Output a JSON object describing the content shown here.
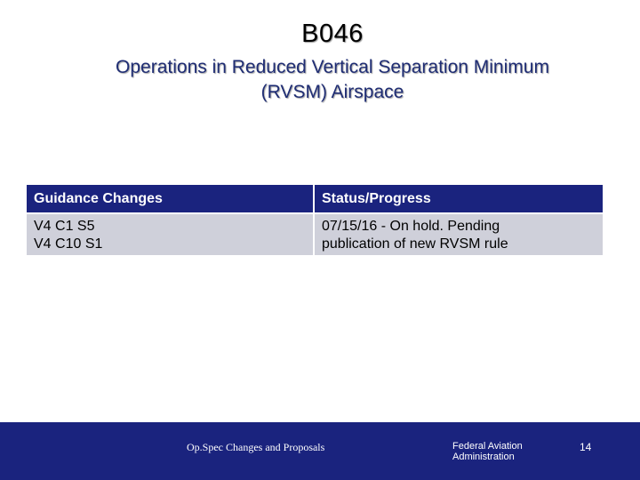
{
  "slide": {
    "title": "B046",
    "subtitle_line1": "Operations in Reduced Vertical Separation Minimum",
    "subtitle_line2": "(RVSM) Airspace"
  },
  "table": {
    "headers": [
      "Guidance Changes",
      "Status/Progress"
    ],
    "rows": [
      {
        "guidance": [
          "V4 C1 S5",
          "V4 C10 S1"
        ],
        "status": [
          "07/15/16 - On hold. Pending",
          "publication of new RVSM rule"
        ]
      }
    ]
  },
  "footer": {
    "center_text": "Op.Spec Changes and Proposals",
    "agency_line1": "Federal Aviation",
    "agency_line2": "Administration",
    "page_number": "14"
  },
  "colors": {
    "header_bg": "#1a237e",
    "row_bg": "#cfd0da",
    "subtitle": "#1f2d74",
    "footer_bg": "#1a237e"
  }
}
